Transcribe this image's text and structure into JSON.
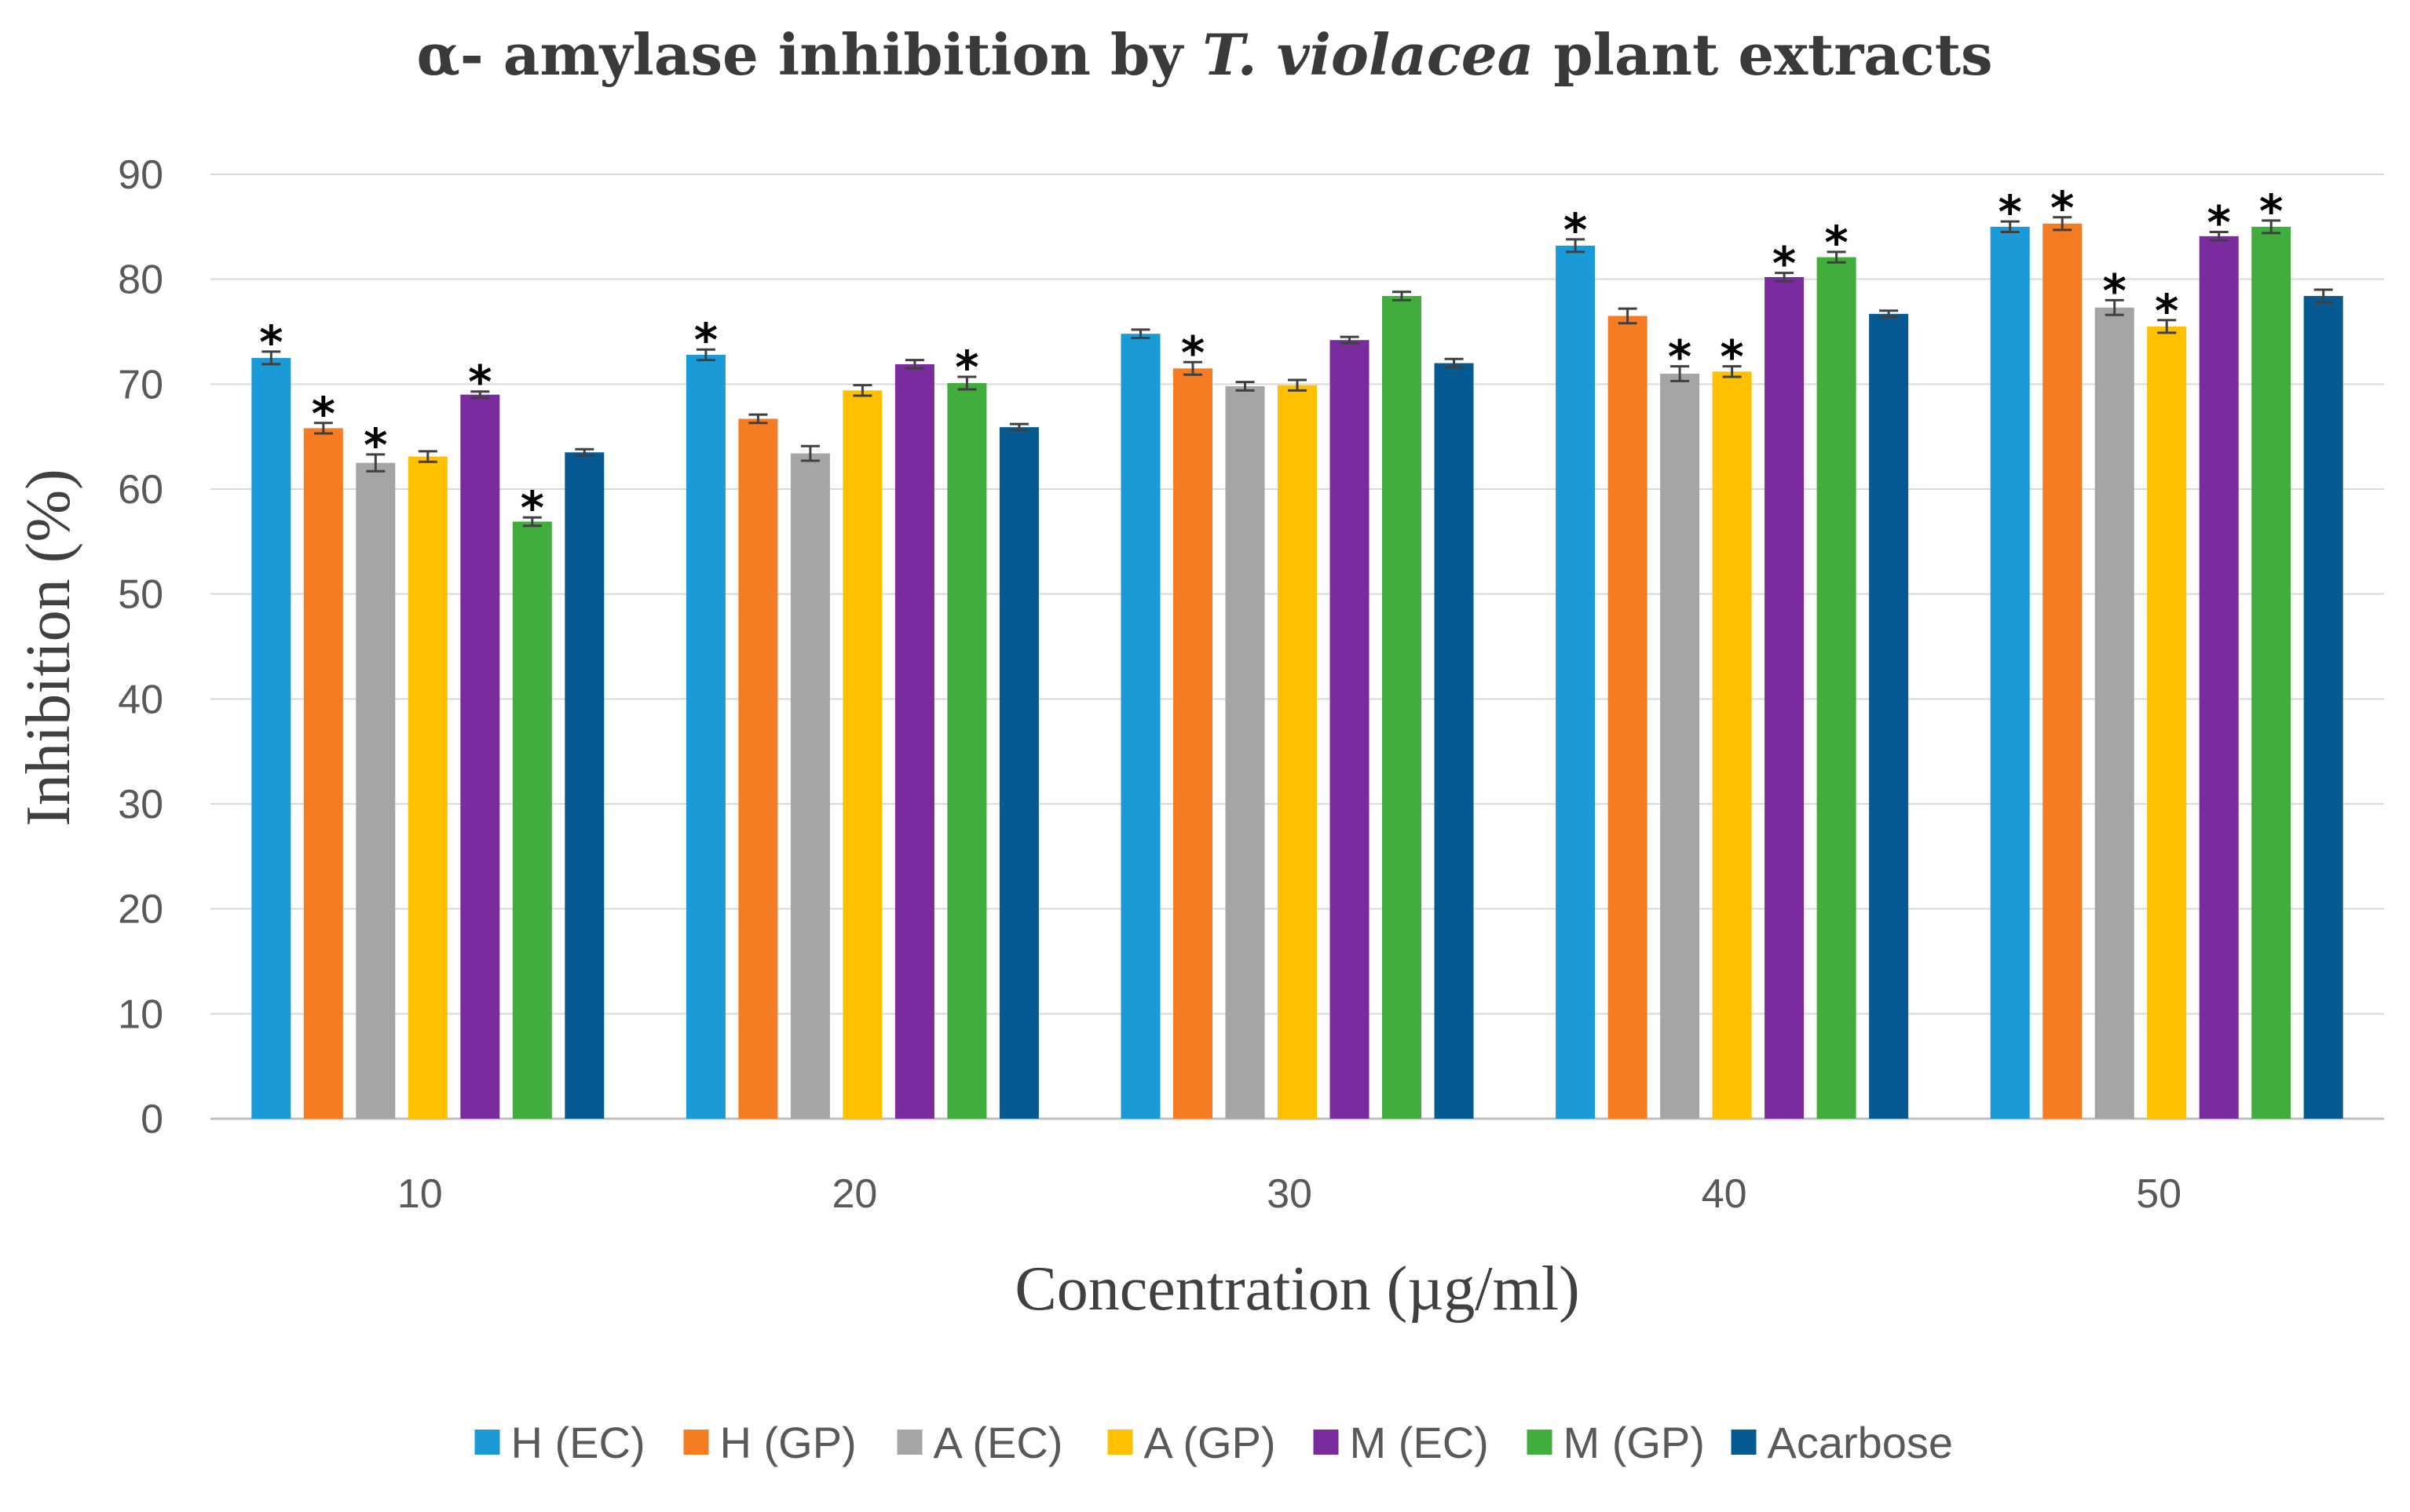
{
  "chart_data": {
    "type": "bar",
    "title": "α- amylase inhibition by T. violacea plant extracts",
    "title_parts": {
      "prefix": "α- amylase inhibition by ",
      "italic": "T. violacea",
      "suffix": " plant extracts"
    },
    "xlabel": "Concentration (µg/ml)",
    "ylabel": "Inhibition (%)",
    "ylim": [
      0,
      90
    ],
    "yticks": [
      0,
      10,
      20,
      30,
      40,
      50,
      60,
      70,
      80,
      90
    ],
    "categories": [
      "10",
      "20",
      "30",
      "40",
      "50"
    ],
    "grid": true,
    "legend_position": "bottom",
    "significance_marker": "*",
    "series": [
      {
        "name": "H (EC)",
        "color": "#1a9ad6",
        "values": [
          72.5,
          72.8,
          74.8,
          83.2,
          85.0
        ],
        "errors": [
          0.6,
          0.5,
          0.4,
          0.6,
          0.5
        ],
        "significant": [
          true,
          true,
          false,
          true,
          true
        ]
      },
      {
        "name": "H (GP)",
        "color": "#f57c22",
        "values": [
          65.8,
          66.7,
          71.5,
          76.5,
          85.3
        ],
        "errors": [
          0.5,
          0.4,
          0.6,
          0.7,
          0.6
        ],
        "significant": [
          true,
          false,
          true,
          false,
          true
        ]
      },
      {
        "name": "A (EC)",
        "color": "#a5a5a5",
        "values": [
          62.5,
          63.4,
          69.8,
          71.0,
          77.3
        ],
        "errors": [
          0.8,
          0.7,
          0.4,
          0.7,
          0.7
        ],
        "significant": [
          true,
          false,
          false,
          true,
          true
        ]
      },
      {
        "name": "A (GP)",
        "color": "#ffc000",
        "values": [
          63.1,
          69.4,
          69.9,
          71.2,
          75.5
        ],
        "errors": [
          0.5,
          0.5,
          0.5,
          0.5,
          0.6
        ],
        "significant": [
          false,
          false,
          false,
          true,
          true
        ]
      },
      {
        "name": "M (EC)",
        "color": "#7a2c9e",
        "values": [
          69.0,
          71.9,
          74.2,
          80.2,
          84.1
        ],
        "errors": [
          0.3,
          0.4,
          0.3,
          0.4,
          0.4
        ],
        "significant": [
          true,
          false,
          false,
          true,
          true
        ]
      },
      {
        "name": "M (GP)",
        "color": "#40ad3c",
        "values": [
          56.9,
          70.1,
          78.4,
          82.1,
          85.0
        ],
        "errors": [
          0.4,
          0.6,
          0.4,
          0.5,
          0.6
        ],
        "significant": [
          true,
          true,
          false,
          true,
          true
        ]
      },
      {
        "name": "Acarbose",
        "color": "#075a91",
        "values": [
          63.5,
          65.9,
          72.0,
          76.7,
          78.4
        ],
        "errors": [
          0.3,
          0.3,
          0.4,
          0.3,
          0.6
        ],
        "significant": [
          false,
          false,
          false,
          false,
          false
        ]
      }
    ]
  }
}
